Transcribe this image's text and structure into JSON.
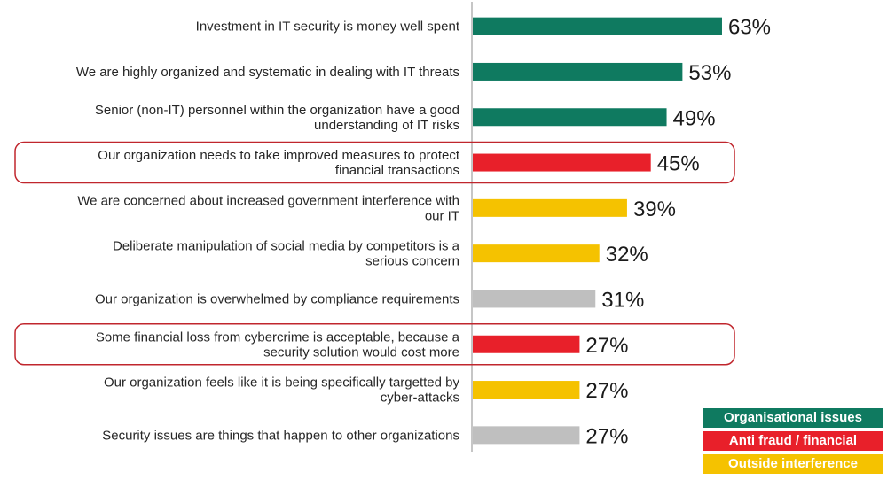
{
  "colors": {
    "organisational": "#0f7a60",
    "financial": "#e8202a",
    "outside": "#f5c200",
    "other": "#bfbfbf",
    "highlight_border": "#c0262d"
  },
  "chart_data": {
    "type": "bar",
    "orientation": "horizontal",
    "xlim": [
      0,
      100
    ],
    "value_suffix": "%",
    "grid": false,
    "categories": [
      {
        "lines": [
          "Investment in IT security is money well spent"
        ],
        "value": 63,
        "group": "organisational",
        "highlight": false
      },
      {
        "lines": [
          "We are highly organized and systematic in dealing with IT threats"
        ],
        "value": 53,
        "group": "organisational",
        "highlight": false
      },
      {
        "lines": [
          "Senior (non-IT) personnel within the organization have a good",
          "understanding of IT risks"
        ],
        "value": 49,
        "group": "organisational",
        "highlight": false
      },
      {
        "lines": [
          "Our organization needs to take improved measures to protect",
          "financial transactions"
        ],
        "value": 45,
        "group": "financial",
        "highlight": true
      },
      {
        "lines": [
          "We are concerned about increased government interference with",
          "our IT"
        ],
        "value": 39,
        "group": "outside",
        "highlight": false
      },
      {
        "lines": [
          "Deliberate manipulation of social media by competitors is a",
          "serious concern"
        ],
        "value": 32,
        "group": "outside",
        "highlight": false
      },
      {
        "lines": [
          "Our organization is overwhelmed by compliance requirements"
        ],
        "value": 31,
        "group": "other",
        "highlight": false
      },
      {
        "lines": [
          "Some financial loss from cybercrime is acceptable, because a",
          "security solution would cost more"
        ],
        "value": 27,
        "group": "financial",
        "highlight": true
      },
      {
        "lines": [
          "Our organization feels like it is being specifically targetted by",
          "cyber-attacks"
        ],
        "value": 27,
        "group": "outside",
        "highlight": false
      },
      {
        "lines": [
          "Security issues are things that happen to other organizations"
        ],
        "value": 27,
        "group": "other",
        "highlight": false
      }
    ],
    "legend": {
      "placement": "bottom-right",
      "items": [
        {
          "label": "Organisational issues",
          "group": "organisational"
        },
        {
          "label": "Anti fraud / financial",
          "group": "financial"
        },
        {
          "label": "Outside interference",
          "group": "outside"
        }
      ]
    }
  }
}
